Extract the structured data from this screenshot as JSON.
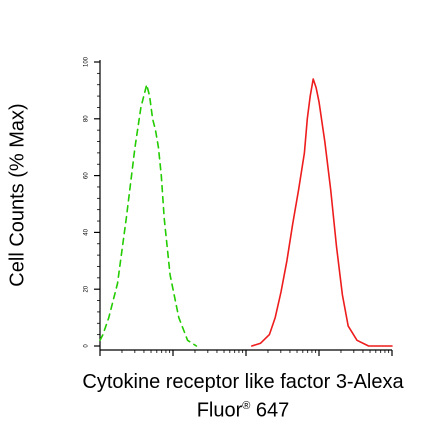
{
  "chart_data": {
    "type": "line",
    "ylabel": "Cell Counts (% Max)",
    "xlabel_line1": "Cytokine receptor like factor 3-Alexa",
    "xlabel_line2_main": "Fluor",
    "xlabel_line2_sup": "®",
    "xlabel_line2_end": " 647",
    "y_ticks": [
      0,
      20,
      40,
      60,
      80,
      100
    ],
    "ylim": [
      0,
      100
    ],
    "xlim": [
      0,
      1
    ],
    "x_scale": "log",
    "x_tick_labels": false,
    "grid": false,
    "series": [
      {
        "style": "dashed",
        "color": "#22cc00",
        "x": [
          0.0,
          0.01,
          0.03,
          0.06,
          0.09,
          0.12,
          0.14,
          0.16,
          0.17,
          0.18,
          0.19,
          0.2,
          0.21,
          0.22,
          0.24,
          0.27,
          0.3,
          0.33
        ],
        "y": [
          2,
          4,
          10,
          22,
          45,
          70,
          84,
          92,
          88,
          80,
          76,
          70,
          60,
          45,
          25,
          10,
          2,
          0
        ]
      },
      {
        "style": "solid",
        "color": "#ee1c1c",
        "x": [
          0.52,
          0.55,
          0.58,
          0.6,
          0.62,
          0.64,
          0.66,
          0.68,
          0.7,
          0.71,
          0.72,
          0.73,
          0.74,
          0.75,
          0.77,
          0.79,
          0.81,
          0.83,
          0.85,
          0.88,
          0.92,
          1.0
        ],
        "y": [
          0,
          1,
          4,
          10,
          19,
          30,
          43,
          55,
          68,
          80,
          88,
          94,
          91,
          86,
          72,
          55,
          35,
          18,
          7,
          2,
          0,
          0
        ]
      }
    ]
  }
}
